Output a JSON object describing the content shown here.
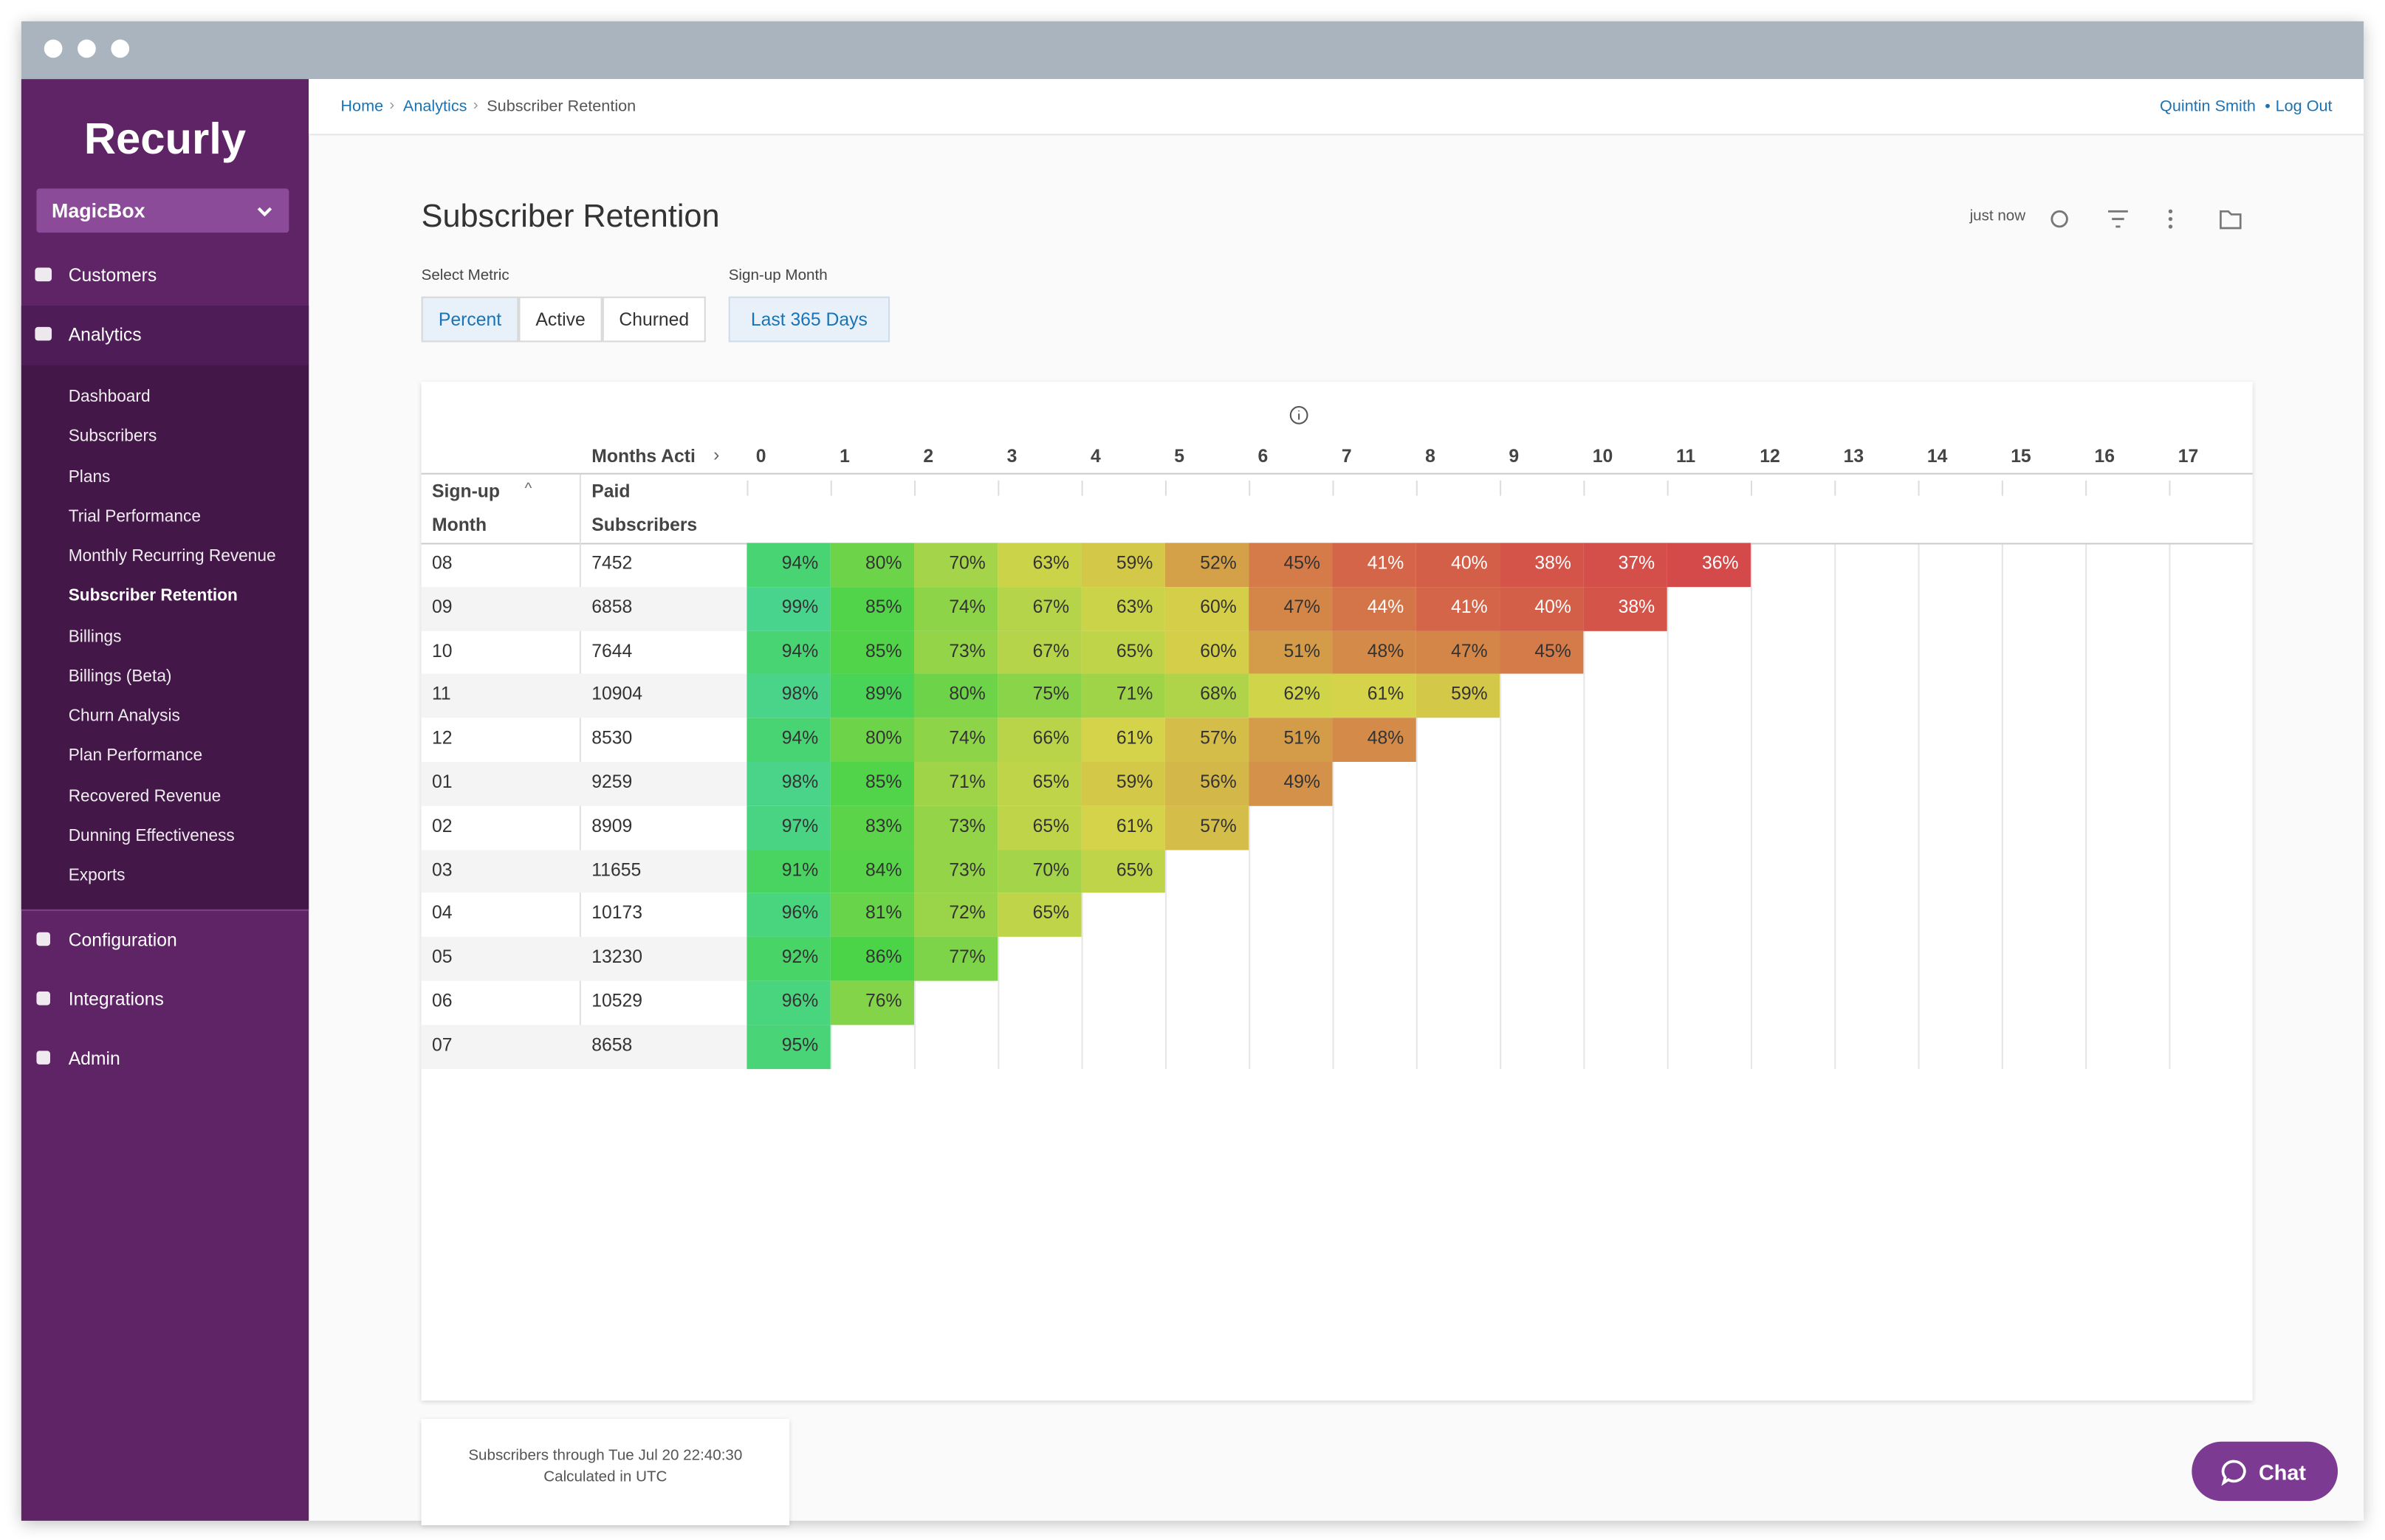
{
  "sidebar": {
    "logo": "Recurly",
    "account": "MagicBox",
    "nav": [
      "Customers",
      "Analytics"
    ],
    "analytics_items": [
      "Dashboard",
      "Subscribers",
      "Plans",
      "Trial Performance",
      "Monthly Recurring Revenue",
      "Subscriber Retention",
      "Billings",
      "Billings (Beta)",
      "Churn Analysis",
      "Plan Performance",
      "Recovered Revenue",
      "Dunning Effectiveness",
      "Exports"
    ],
    "bottom_nav": [
      "Configuration",
      "Integrations",
      "Admin"
    ]
  },
  "breadcrumb": [
    "Home",
    "Analytics",
    "Subscriber Retention"
  ],
  "user": "Quintin Smith",
  "logout": "Log Out",
  "page": {
    "title": "Subscriber Retention",
    "refreshed": "just now",
    "metric_label": "Select Metric",
    "metrics": [
      "Percent",
      "Active",
      "Churned"
    ],
    "signup_label": "Sign-up Month",
    "signup_range": "Last 365 Days"
  },
  "table": {
    "months_header": "Months Acti",
    "columns": [
      "0",
      "1",
      "2",
      "3",
      "4",
      "5",
      "6",
      "7",
      "8",
      "9",
      "10",
      "11",
      "12",
      "13",
      "14",
      "15",
      "16",
      "17"
    ],
    "signup_header": [
      "Sign-up",
      "Month"
    ],
    "paid_header": [
      "Paid",
      "Subscribers"
    ],
    "rows": [
      {
        "month": "08",
        "paid": "7452",
        "cells": [
          "94%",
          "80%",
          "70%",
          "63%",
          "59%",
          "52%",
          "45%",
          "41%",
          "40%",
          "38%",
          "37%",
          "36%"
        ]
      },
      {
        "month": "09",
        "paid": "6858",
        "cells": [
          "99%",
          "85%",
          "74%",
          "67%",
          "63%",
          "60%",
          "47%",
          "44%",
          "41%",
          "40%",
          "38%"
        ]
      },
      {
        "month": "10",
        "paid": "7644",
        "cells": [
          "94%",
          "85%",
          "73%",
          "67%",
          "65%",
          "60%",
          "51%",
          "48%",
          "47%",
          "45%"
        ]
      },
      {
        "month": "11",
        "paid": "10904",
        "cells": [
          "98%",
          "89%",
          "80%",
          "75%",
          "71%",
          "68%",
          "62%",
          "61%",
          "59%"
        ]
      },
      {
        "month": "12",
        "paid": "8530",
        "cells": [
          "94%",
          "80%",
          "74%",
          "66%",
          "61%",
          "57%",
          "51%",
          "48%"
        ]
      },
      {
        "month": "01",
        "paid": "9259",
        "cells": [
          "98%",
          "85%",
          "71%",
          "65%",
          "59%",
          "56%",
          "49%"
        ]
      },
      {
        "month": "02",
        "paid": "8909",
        "cells": [
          "97%",
          "83%",
          "73%",
          "65%",
          "61%",
          "57%"
        ]
      },
      {
        "month": "03",
        "paid": "11655",
        "cells": [
          "91%",
          "84%",
          "73%",
          "70%",
          "65%"
        ]
      },
      {
        "month": "04",
        "paid": "10173",
        "cells": [
          "96%",
          "81%",
          "72%",
          "65%"
        ]
      },
      {
        "month": "05",
        "paid": "13230",
        "cells": [
          "92%",
          "86%",
          "77%"
        ]
      },
      {
        "month": "06",
        "paid": "10529",
        "cells": [
          "96%",
          "76%"
        ]
      },
      {
        "month": "07",
        "paid": "8658",
        "cells": [
          "95%"
        ]
      }
    ]
  },
  "footer": [
    "Subscribers through Tue Jul 20 22:40:30",
    "Calculated in UTC"
  ],
  "chat": "Chat"
}
